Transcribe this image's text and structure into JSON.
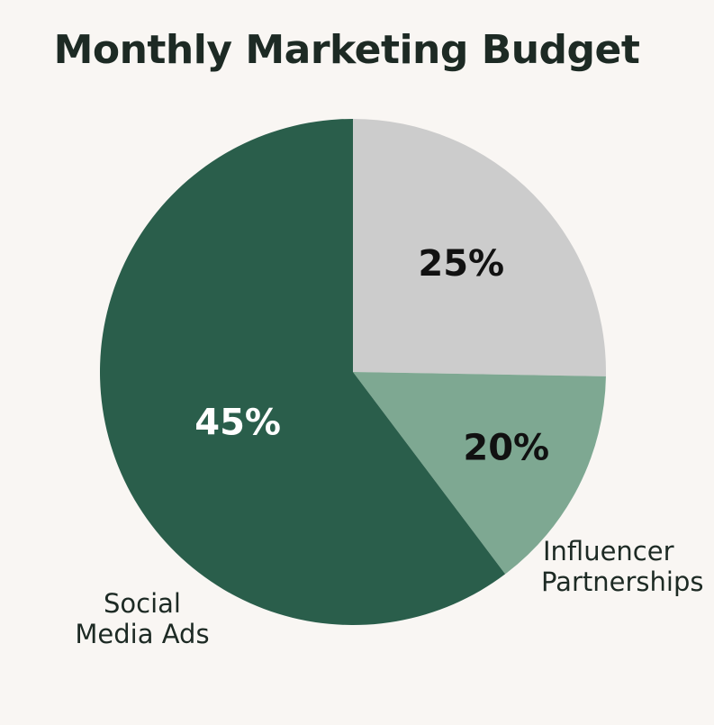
{
  "chart_data": {
    "type": "pie",
    "title": "Monthly Marketing Budget",
    "slices": [
      {
        "label": "",
        "value": 25,
        "value_label": "25%",
        "color": "#cccccc",
        "text_color": "#111111"
      },
      {
        "label": "Influencer Partnerships",
        "label_lines": [
          "Influencer",
          "Partnerships"
        ],
        "value": 20,
        "value_label": "20%",
        "color": "#7ea892",
        "text_color": "#111111"
      },
      {
        "label": "Social Media Ads",
        "label_lines": [
          "Social",
          "Media Ads"
        ],
        "value": 45,
        "value_label": "45%",
        "color": "#2a5e4b",
        "text_color": "#ffffff"
      }
    ],
    "background": "#f9f6f3"
  }
}
